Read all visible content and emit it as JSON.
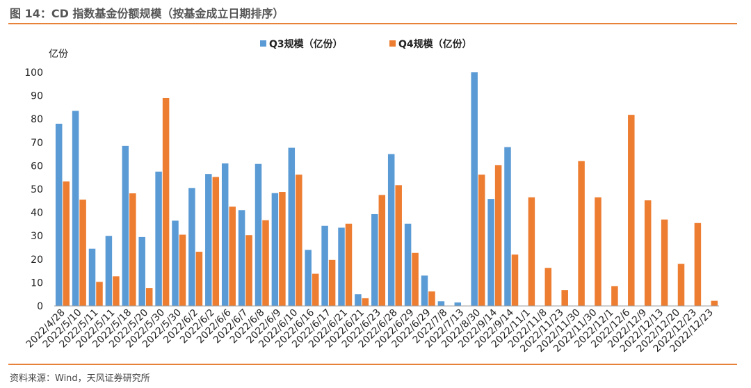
{
  "header": {
    "title": "图 14：CD 指数基金份额规模（按基金成立日期排序）"
  },
  "footer": {
    "source": "资料来源：Wind，天风证券研究所"
  },
  "colors": {
    "rule": "#E8823A",
    "q3": "#5B9BD5",
    "q4": "#ED7D31",
    "axis": "#9E9E9E"
  },
  "chart_data": {
    "type": "bar",
    "title": "",
    "xlabel": "",
    "ylabel": "亿份",
    "ylim": [
      0,
      100
    ],
    "yticks": [
      0,
      10,
      20,
      30,
      40,
      50,
      60,
      70,
      80,
      90,
      100
    ],
    "grid": false,
    "legend_position": "top-center",
    "categories": [
      "2022/4/28",
      "2022/5/10",
      "2022/5/11",
      "2022/5/11",
      "2022/5/18",
      "2022/5/20",
      "2022/5/30",
      "2022/5/30",
      "2022/6/2",
      "2022/6/2",
      "2022/6/6",
      "2022/6/7",
      "2022/6/8",
      "2022/6/9",
      "2022/6/10",
      "2022/6/16",
      "2022/6/17",
      "2022/6/21",
      "2022/6/21",
      "2022/6/23",
      "2022/6/28",
      "2022/6/29",
      "2022/6/29",
      "2022/7/8",
      "2022/7/13",
      "2022/8/30",
      "2022/9/14",
      "2022/9/14",
      "2022/11/1",
      "2022/11/8",
      "2022/11/23",
      "2022/11/30",
      "2022/11/30",
      "2022/12/1",
      "2022/12/6",
      "2022/12/9",
      "2022/12/13",
      "2022/12/20",
      "2022/12/23",
      "2022/12/23"
    ],
    "series": [
      {
        "name": "Q3规模（亿份）",
        "values": [
          78,
          83.5,
          24.5,
          30,
          68.5,
          29.5,
          57.5,
          36.5,
          50.5,
          56.5,
          61,
          41,
          60.8,
          48.3,
          67.7,
          24,
          34.3,
          33.5,
          5,
          39.3,
          65,
          35.2,
          13,
          2,
          1.5,
          100,
          45.8,
          68,
          0,
          0,
          0,
          0,
          0,
          0,
          0,
          0,
          0,
          0,
          0,
          0
        ]
      },
      {
        "name": "Q4规模（亿份）",
        "values": [
          53.3,
          45.5,
          10.3,
          12.7,
          48.2,
          7.7,
          89,
          30.5,
          23.2,
          55.2,
          42.5,
          30.3,
          36.7,
          48.8,
          56.2,
          13.8,
          19.7,
          35.2,
          3.3,
          47.5,
          51.7,
          22.7,
          6.2,
          0,
          0,
          56.2,
          60.3,
          22,
          46.5,
          16.3,
          6.8,
          62,
          46.5,
          8.5,
          81.8,
          45.2,
          37,
          18,
          35.5,
          2.2
        ]
      }
    ]
  }
}
